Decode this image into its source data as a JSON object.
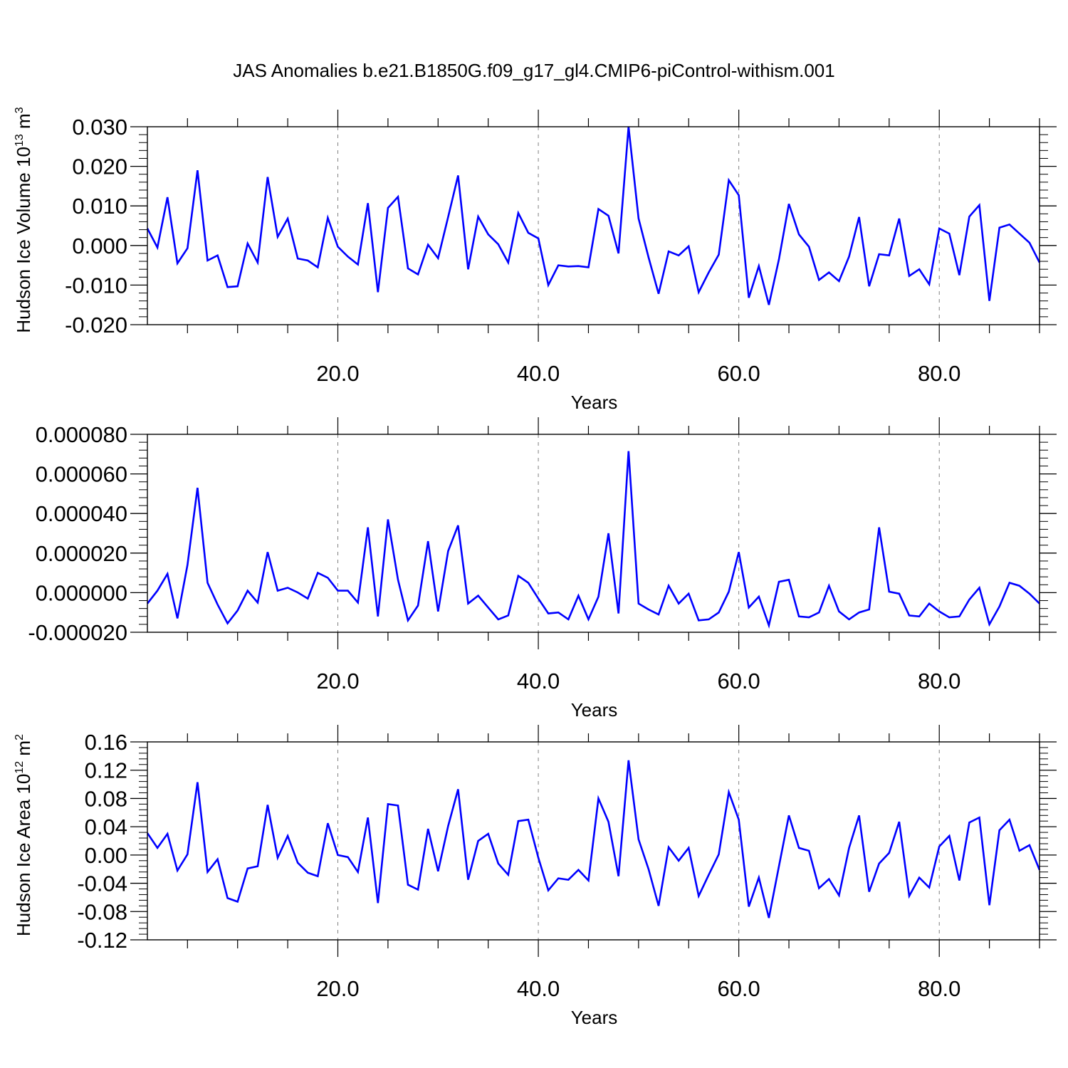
{
  "figure_title": "JAS Anomalies b.e21.B1850G.f09_g17_gl4.CMIP6-piControl-withism.001",
  "line_color": "#0000ff",
  "grid_color": "#808080",
  "chart_data": [
    {
      "type": "line",
      "title": "",
      "xlabel": "Years",
      "ylabel": "Hudson Ice Volume 10",
      "ylabel_sup": "13",
      "ylabel_unit": " m",
      "ylabel_unit_sup": "3",
      "xlim": [
        1,
        90
      ],
      "ylim": [
        -0.02,
        0.03
      ],
      "x_ticks": [
        20,
        40,
        60,
        80
      ],
      "x_tick_labels": [
        "20.0",
        "40.0",
        "60.0",
        "80.0"
      ],
      "y_ticks": [
        -0.02,
        -0.01,
        0.0,
        0.01,
        0.02,
        0.03
      ],
      "y_tick_labels": [
        "-0.020",
        "-0.010",
        "0.000",
        "0.010",
        "0.020",
        "0.030"
      ],
      "grid": "vertical dashed at major x ticks",
      "x_start": 1,
      "series": [
        {
          "values": [
            0.0043,
            -0.0005,
            0.0122,
            -0.0045,
            -0.0007,
            0.019,
            -0.0038,
            -0.0025,
            -0.0105,
            -0.0103,
            0.0005,
            -0.0043,
            0.0173,
            0.0022,
            0.0068,
            -0.0033,
            -0.0038,
            -0.0055,
            0.007,
            -0.0003,
            -0.0028,
            -0.0048,
            0.0107,
            -0.0118,
            0.0095,
            0.0123,
            -0.0058,
            -0.0073,
            0.0002,
            -0.0032,
            0.0072,
            0.0177,
            -0.006,
            0.0073,
            0.0028,
            0.0003,
            -0.0043,
            0.0082,
            0.0032,
            0.0018,
            -0.01,
            -0.005,
            -0.0053,
            -0.0052,
            -0.0055,
            0.0092,
            0.0075,
            -0.002,
            0.03,
            0.0068,
            -0.003,
            -0.0122,
            -0.0015,
            -0.0025,
            -0.0002,
            -0.0118,
            -0.0068,
            -0.0023,
            0.0165,
            0.0127,
            -0.0132,
            -0.0052,
            -0.015,
            -0.0035,
            0.0105,
            0.0028,
            -0.0003,
            -0.0087,
            -0.0068,
            -0.009,
            -0.0028,
            0.0072,
            -0.0103,
            -0.0022,
            -0.0025,
            0.0068,
            -0.0077,
            -0.006,
            -0.0098,
            0.0043,
            0.003,
            -0.0075,
            0.0073,
            0.0102,
            -0.014,
            0.0045,
            0.0053,
            0.003,
            0.0007,
            -0.0043
          ]
        }
      ]
    },
    {
      "type": "line",
      "title": "",
      "xlabel": "Years",
      "ylabel": "",
      "xlim": [
        1,
        90
      ],
      "ylim": [
        -2e-05,
        8e-05
      ],
      "x_ticks": [
        20,
        40,
        60,
        80
      ],
      "x_tick_labels": [
        "20.0",
        "40.0",
        "60.0",
        "80.0"
      ],
      "y_ticks": [
        -2e-05,
        0.0,
        2e-05,
        4e-05,
        6e-05,
        8e-05
      ],
      "y_tick_labels": [
        "-0.000020",
        "0.000000",
        "0.000020",
        "0.000040",
        "0.000060",
        "0.000080"
      ],
      "grid": "vertical dashed at major x ticks",
      "x_start": 1,
      "series": [
        {
          "values": [
            -5.5e-06,
            1e-06,
            9.5e-06,
            -1.3e-05,
            1.4e-05,
            5.3e-05,
            5e-06,
            -6e-06,
            -1.55e-05,
            -9e-06,
            1e-06,
            -5e-06,
            2.05e-05,
            1e-06,
            2.5e-06,
            1e-07,
            -3e-06,
            1e-05,
            7.5e-06,
            1e-06,
            1e-06,
            -5e-06,
            3.3e-05,
            -1.2e-05,
            3.7e-05,
            6.5e-06,
            -1.4e-05,
            -6.5e-06,
            2.6e-05,
            -9.5e-06,
            2.1e-05,
            3.4e-05,
            -5.5e-06,
            -1.5e-06,
            -7.5e-06,
            -1.35e-05,
            -1.15e-05,
            8.5e-06,
            5e-06,
            -3e-06,
            -1.05e-05,
            -1e-05,
            -1.35e-05,
            -1.5e-06,
            -1.35e-05,
            -2e-06,
            3e-05,
            -1.05e-05,
            7.15e-05,
            -5.5e-06,
            -8.5e-06,
            -1.1e-05,
            3.5e-06,
            -5.5e-06,
            -5e-07,
            -1.4e-05,
            -1.35e-05,
            -1e-05,
            5e-07,
            2.05e-05,
            -7.5e-06,
            -2e-06,
            -1.65e-05,
            5.5e-06,
            6.5e-06,
            -1.2e-05,
            -1.25e-05,
            -1e-05,
            3.5e-06,
            -9.5e-06,
            -1.35e-05,
            -1e-05,
            -8.5e-06,
            3.3e-05,
            5e-07,
            -5e-07,
            -1.15e-05,
            -1.2e-05,
            -5.5e-06,
            -9.5e-06,
            -1.25e-05,
            -1.2e-05,
            -3.5e-06,
            2.5e-06,
            -1.6e-05,
            -7e-06,
            5e-06,
            3.5e-06,
            -5e-07,
            -5.5e-06
          ]
        }
      ]
    },
    {
      "type": "line",
      "title": "",
      "xlabel": "Years",
      "ylabel": "Hudson Ice Area 10",
      "ylabel_sup": "12",
      "ylabel_unit": " m",
      "ylabel_unit_sup": "2",
      "xlim": [
        1,
        90
      ],
      "ylim": [
        -0.12,
        0.16
      ],
      "x_ticks": [
        20,
        40,
        60,
        80
      ],
      "x_tick_labels": [
        "20.0",
        "40.0",
        "60.0",
        "80.0"
      ],
      "y_ticks": [
        -0.12,
        -0.08,
        -0.04,
        0.0,
        0.04,
        0.08,
        0.12,
        0.16
      ],
      "y_tick_labels": [
        "-0.12",
        "-0.08",
        "-0.04",
        "0.00",
        "0.04",
        "0.08",
        "0.12",
        "0.16"
      ],
      "grid": "vertical dashed at major x ticks",
      "x_start": 1,
      "series": [
        {
          "values": [
            0.031,
            0.01,
            0.03,
            -0.022,
            0.001,
            0.103,
            -0.024,
            -0.006,
            -0.061,
            -0.066,
            -0.019,
            -0.016,
            0.071,
            -0.004,
            0.027,
            -0.011,
            -0.025,
            -0.03,
            0.045,
            0.0,
            -0.003,
            -0.024,
            0.053,
            -0.068,
            0.072,
            0.07,
            -0.042,
            -0.049,
            0.037,
            -0.023,
            0.041,
            0.093,
            -0.035,
            0.02,
            0.03,
            -0.012,
            -0.028,
            0.048,
            0.05,
            -0.004,
            -0.05,
            -0.033,
            -0.035,
            -0.021,
            -0.036,
            0.08,
            0.047,
            -0.03,
            0.134,
            0.022,
            -0.02,
            -0.072,
            0.011,
            -0.008,
            0.01,
            -0.058,
            -0.028,
            0.001,
            0.089,
            0.05,
            -0.073,
            -0.032,
            -0.089,
            -0.016,
            0.056,
            0.01,
            0.006,
            -0.047,
            -0.034,
            -0.057,
            0.01,
            0.056,
            -0.052,
            -0.012,
            0.003,
            0.047,
            -0.058,
            -0.032,
            -0.046,
            0.012,
            0.027,
            -0.036,
            0.046,
            0.053,
            -0.071,
            0.035,
            0.05,
            0.006,
            0.014,
            -0.021
          ]
        }
      ]
    }
  ]
}
